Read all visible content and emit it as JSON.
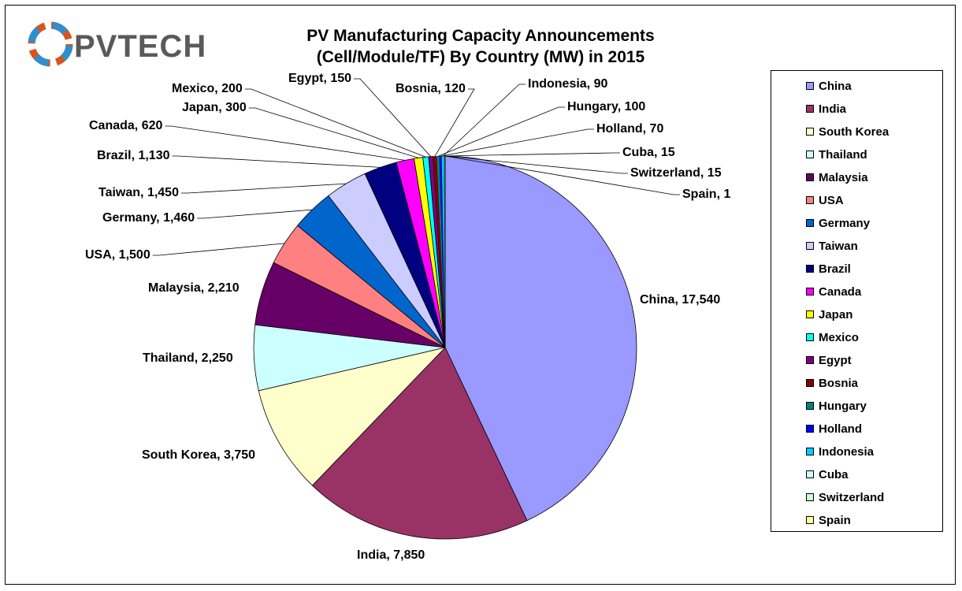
{
  "logo": {
    "text": "PVTECH"
  },
  "chart_data": {
    "type": "pie",
    "title_line1": "PV Manufacturing Capacity Announcements",
    "title_line2": "(Cell/Module/TF) By Country (MW) in 2015",
    "legend_position": "right",
    "slices": [
      {
        "name": "China",
        "value": 17540,
        "label": "China, 17,540",
        "color": "#9999FF"
      },
      {
        "name": "India",
        "value": 7850,
        "label": "India, 7,850",
        "color": "#993366"
      },
      {
        "name": "South Korea",
        "value": 3750,
        "label": "South Korea, 3,750",
        "color": "#FFFFCC"
      },
      {
        "name": "Thailand",
        "value": 2250,
        "label": "Thailand, 2,250",
        "color": "#CCFFFF"
      },
      {
        "name": "Malaysia",
        "value": 2210,
        "label": "Malaysia, 2,210",
        "color": "#660066"
      },
      {
        "name": "USA",
        "value": 1500,
        "label": "USA, 1,500",
        "color": "#FF8080"
      },
      {
        "name": "Germany",
        "value": 1460,
        "label": "Germany, 1,460",
        "color": "#0066CC"
      },
      {
        "name": "Taiwan",
        "value": 1450,
        "label": "Taiwan, 1,450",
        "color": "#CCCCFF"
      },
      {
        "name": "Brazil",
        "value": 1130,
        "label": "Brazil, 1,130",
        "color": "#000080"
      },
      {
        "name": "Canada",
        "value": 620,
        "label": "Canada, 620",
        "color": "#FF00FF"
      },
      {
        "name": "Japan",
        "value": 300,
        "label": "Japan, 300",
        "color": "#FFFF00"
      },
      {
        "name": "Mexico",
        "value": 200,
        "label": "Mexico, 200",
        "color": "#00FFFF"
      },
      {
        "name": "Egypt",
        "value": 150,
        "label": "Egypt, 150",
        "color": "#800080"
      },
      {
        "name": "Bosnia",
        "value": 120,
        "label": "Bosnia, 120",
        "color": "#800000"
      },
      {
        "name": "Hungary",
        "value": 100,
        "label": "Hungary, 100",
        "color": "#008080"
      },
      {
        "name": "Holland",
        "value": 70,
        "label": "Holland, 70",
        "color": "#0000FF"
      },
      {
        "name": "Indonesia",
        "value": 90,
        "label": "Indonesia, 90",
        "color": "#00CCFF"
      },
      {
        "name": "Cuba",
        "value": 15,
        "label": "Cuba, 15",
        "color": "#CCFFFF"
      },
      {
        "name": "Switzerland",
        "value": 15,
        "label": "Switzerland, 15",
        "color": "#CCFFCC"
      },
      {
        "name": "Spain",
        "value": 1,
        "label": "Spain, 1",
        "color": "#FFFF99"
      }
    ]
  }
}
